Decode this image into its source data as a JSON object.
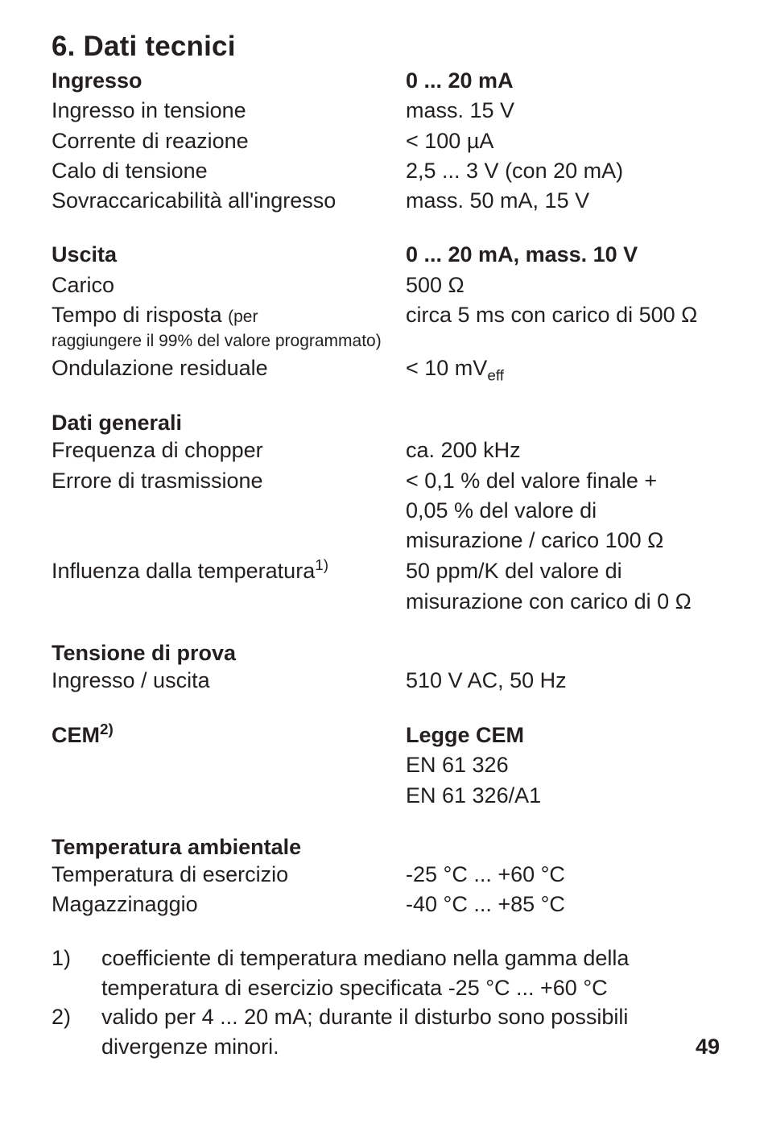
{
  "heading": "6.    Dati tecnici",
  "ingresso_section": {
    "header_label": "Ingresso",
    "header_value": "0 ... 20 mA",
    "rows": [
      {
        "label": "Ingresso in tensione",
        "value": "mass. 15 V"
      },
      {
        "label": "Corrente di reazione",
        "value": "< 100 µA"
      },
      {
        "label": "Calo di tensione",
        "value": "2,5 ... 3 V (con 20 mA)"
      },
      {
        "label": "Sovraccaricabilità all'ingresso",
        "value": "mass. 50 mA, 15 V"
      }
    ]
  },
  "uscita_section": {
    "header_label": "Uscita",
    "header_value": "0 ... 20 mA, mass. 10 V",
    "carico_label": "Carico",
    "carico_value": "500 Ω",
    "tempo_label_a": "Tempo di risposta ",
    "tempo_label_b": "(per",
    "tempo_value": "circa 5 ms con carico di 500 Ω",
    "tempo_cont": "raggiungere il 99% del valore programmato)",
    "ondul_label": "Ondulazione residuale",
    "ondul_value_a": "< 10 mV",
    "ondul_value_sub": "eff"
  },
  "dati_generali": {
    "title": "Dati generali",
    "freq_label": "Frequenza di chopper",
    "freq_value": "ca. 200 kHz",
    "err_label": "Errore di trasmissione",
    "err_value_1": "< 0,1 % del valore finale +",
    "err_value_2": "0,05 % del valore di",
    "err_value_3": "misurazione / carico 100 Ω",
    "infl_label_a": "Influenza dalla temperatura",
    "infl_label_sup": "1)",
    "infl_value_1": "50 ppm/K del valore di",
    "infl_value_2": "misurazione con carico di 0 Ω"
  },
  "tensione": {
    "title": "Tensione di prova",
    "row_label": "Ingresso / uscita",
    "row_value": "510 V AC, 50 Hz"
  },
  "cem": {
    "label_a": "CEM",
    "label_sup": "2)",
    "value_1": "Legge CEM",
    "value_2": "EN 61 326",
    "value_3": "EN 61 326/A1"
  },
  "temp_amb": {
    "title": "Temperatura ambientale",
    "rows": [
      {
        "label": "Temperatura di esercizio",
        "value": "-25 °C ... +60 °C"
      },
      {
        "label": "Magazzinaggio",
        "value": "-40 °C ... +85 °C"
      }
    ]
  },
  "footnotes": {
    "n1": "1)",
    "t1": "coefficiente di temperatura mediano nella gamma della temperatura di esercizio specificata -25 °C ... +60 °C",
    "n2": "2)",
    "t2a": "valido per 4 ... 20 mA; durante il disturbo sono possibili",
    "t2b": "divergenze minori."
  },
  "page_number": "49"
}
